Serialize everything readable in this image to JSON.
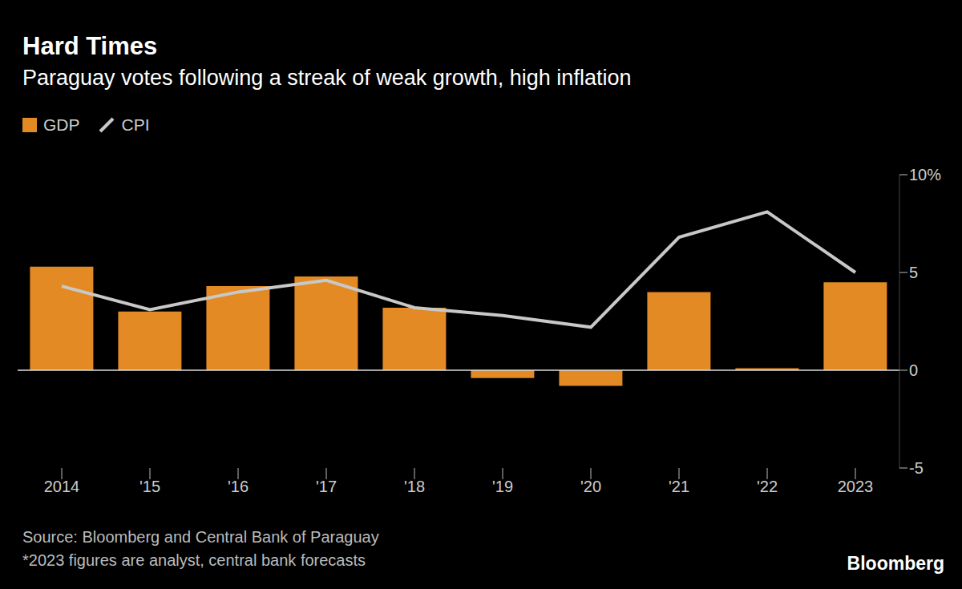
{
  "chart_data": {
    "type": "bar",
    "title": "Hard Times",
    "subtitle": "Paraguay votes following a streak of weak growth, high inflation",
    "categories": [
      "2014",
      "'15",
      "'16",
      "'17",
      "'18",
      "'19",
      "'20",
      "'21",
      "'22",
      "2023"
    ],
    "series": [
      {
        "name": "GDP",
        "type": "bar",
        "color": "#e38a25",
        "values": [
          5.3,
          3.0,
          4.3,
          4.8,
          3.2,
          -0.4,
          -0.8,
          4.0,
          0.1,
          4.5
        ]
      },
      {
        "name": "CPI",
        "type": "line",
        "color": "#c8c8c8",
        "values": [
          4.3,
          3.1,
          4.0,
          4.6,
          3.2,
          2.8,
          2.2,
          6.8,
          8.1,
          5.0
        ]
      }
    ],
    "ylim": [
      -5,
      10
    ],
    "yticks": [
      -5,
      0,
      5,
      {
        "value": 10,
        "label": "10%"
      }
    ],
    "grid": false,
    "legend": "top-left",
    "source": "Source: Bloomberg and Central Bank of Paraguay",
    "note": "*2023 figures are analyst, central bank forecasts",
    "credit": "Bloomberg"
  }
}
